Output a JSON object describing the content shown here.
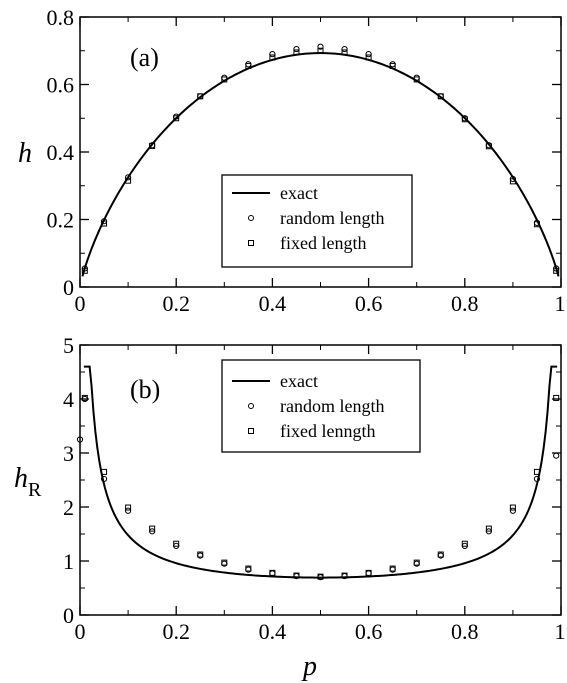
{
  "chart_data": [
    {
      "type": "line",
      "panel_label": "(a)",
      "ylabel": "h",
      "xlabel": "",
      "xlim": [
        0,
        1
      ],
      "ylim": [
        0,
        0.8
      ],
      "xticks": [
        "0",
        "0.2",
        "0.4",
        "0.6",
        "0.8",
        "1"
      ],
      "yticks": [
        "0",
        "0.2",
        "0.4",
        "0.6",
        "0.8"
      ],
      "legend": {
        "position": "center-bottom",
        "entries": [
          "exact",
          "random length",
          "fixed length"
        ]
      },
      "series": [
        {
          "name": "exact",
          "style": "line",
          "function": "binary_entropy_nats"
        },
        {
          "name": "random length",
          "style": "circle",
          "x": [
            0.01,
            0.05,
            0.1,
            0.15,
            0.2,
            0.25,
            0.3,
            0.35,
            0.4,
            0.45,
            0.5,
            0.55,
            0.6,
            0.65,
            0.7,
            0.75,
            0.8,
            0.85,
            0.9,
            0.95,
            0.99
          ],
          "y": [
            0.055,
            0.195,
            0.325,
            0.42,
            0.505,
            0.565,
            0.62,
            0.66,
            0.69,
            0.705,
            0.712,
            0.705,
            0.69,
            0.66,
            0.62,
            0.565,
            0.5,
            0.42,
            0.32,
            0.19,
            0.055
          ]
        },
        {
          "name": "fixed length",
          "style": "square",
          "x": [
            0.01,
            0.05,
            0.1,
            0.15,
            0.2,
            0.25,
            0.3,
            0.35,
            0.4,
            0.45,
            0.5,
            0.55,
            0.6,
            0.65,
            0.7,
            0.75,
            0.8,
            0.85,
            0.9,
            0.95,
            0.99
          ],
          "y": [
            0.048,
            0.188,
            0.315,
            0.418,
            0.5,
            0.565,
            0.615,
            0.655,
            0.68,
            0.695,
            0.7,
            0.695,
            0.68,
            0.655,
            0.615,
            0.565,
            0.497,
            0.417,
            0.313,
            0.186,
            0.048
          ]
        }
      ]
    },
    {
      "type": "line",
      "panel_label": "(b)",
      "ylabel": "h",
      "ylabel_sub": "R",
      "xlabel": "p",
      "xlim": [
        0,
        1
      ],
      "ylim": [
        0,
        5
      ],
      "xticks": [
        "0",
        "0.2",
        "0.4",
        "0.6",
        "0.8",
        "1"
      ],
      "yticks": [
        "0",
        "1",
        "2",
        "3",
        "4",
        "5"
      ],
      "legend": {
        "position": "top-center",
        "entries": [
          "exact",
          "random length",
          "fixed lenngth"
        ]
      },
      "series": [
        {
          "name": "exact",
          "style": "line",
          "function": "renyi_entropy_order2"
        },
        {
          "name": "random length",
          "style": "circle",
          "x": [
            0.0,
            0.01,
            0.05,
            0.1,
            0.15,
            0.2,
            0.25,
            0.3,
            0.35,
            0.4,
            0.45,
            0.5,
            0.55,
            0.6,
            0.65,
            0.7,
            0.75,
            0.8,
            0.85,
            0.9,
            0.95,
            0.99
          ],
          "y": [
            3.25,
            4.0,
            2.52,
            1.93,
            1.55,
            1.28,
            1.1,
            0.95,
            0.84,
            0.77,
            0.72,
            0.7,
            0.72,
            0.77,
            0.84,
            0.95,
            1.1,
            1.28,
            1.55,
            1.93,
            2.52,
            2.95
          ]
        },
        {
          "name": "fixed lenngth",
          "style": "square",
          "x": [
            0.01,
            0.05,
            0.1,
            0.15,
            0.2,
            0.25,
            0.3,
            0.35,
            0.4,
            0.45,
            0.5,
            0.55,
            0.6,
            0.65,
            0.7,
            0.75,
            0.8,
            0.85,
            0.9,
            0.95,
            0.99
          ],
          "y": [
            4.02,
            2.65,
            1.99,
            1.6,
            1.32,
            1.12,
            0.97,
            0.86,
            0.78,
            0.73,
            0.71,
            0.73,
            0.78,
            0.86,
            0.97,
            1.12,
            1.32,
            1.6,
            1.99,
            2.65,
            4.02
          ]
        }
      ]
    }
  ]
}
